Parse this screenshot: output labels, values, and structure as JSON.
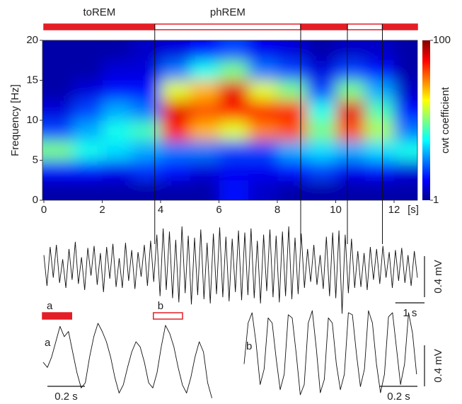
{
  "chart_data": {
    "type": "heatmap",
    "ylabel": "Frequency [Hz]",
    "x_unit_label": "[s]",
    "colorbar_label": "cwt coefficient",
    "colormap": "jet",
    "clim": [
      1,
      100
    ],
    "cticks": [
      1,
      100
    ],
    "xlim": [
      0,
      12.8
    ],
    "xticks": [
      0,
      2,
      4,
      6,
      8,
      10,
      12
    ],
    "ylim": [
      0,
      20
    ],
    "yticks": [
      0,
      5,
      10,
      15,
      20
    ],
    "x": [
      0.5,
      1.5,
      2.5,
      3.5,
      4.5,
      5.5,
      6.5,
      7.5,
      8.5,
      9.5,
      10.5,
      11.5,
      12.5
    ],
    "y": [
      1.25,
      3.75,
      6.25,
      8.75,
      11.25,
      13.75,
      16.25,
      18.75
    ],
    "z": [
      [
        5,
        5,
        5,
        5,
        5,
        5,
        15,
        8,
        5,
        5,
        5,
        5,
        5
      ],
      [
        15,
        15,
        12,
        18,
        15,
        10,
        12,
        12,
        15,
        20,
        12,
        15,
        10
      ],
      [
        50,
        40,
        35,
        30,
        25,
        25,
        20,
        20,
        30,
        35,
        30,
        35,
        40
      ],
      [
        20,
        30,
        40,
        45,
        85,
        70,
        60,
        75,
        80,
        50,
        80,
        55,
        25
      ],
      [
        10,
        20,
        30,
        25,
        90,
        80,
        85,
        85,
        85,
        40,
        90,
        45,
        15
      ],
      [
        5,
        10,
        15,
        15,
        60,
        70,
        90,
        60,
        50,
        20,
        50,
        30,
        8
      ],
      [
        5,
        5,
        10,
        10,
        25,
        40,
        50,
        25,
        20,
        10,
        20,
        15,
        5
      ],
      [
        5,
        5,
        5,
        8,
        10,
        15,
        20,
        12,
        10,
        5,
        8,
        8,
        5
      ]
    ],
    "state_color": "#e41e26",
    "states": [
      {
        "name": "toREM",
        "start": 0,
        "end": 3.8,
        "fill": true
      },
      {
        "name": "phREM",
        "start": 3.8,
        "end": 8.8,
        "fill": false
      },
      {
        "start": 8.8,
        "end": 10.4,
        "fill": true
      },
      {
        "start": 10.4,
        "end": 11.6,
        "fill": false
      },
      {
        "start": 11.6,
        "end": 12.8,
        "fill": true
      }
    ],
    "overview_trace": {
      "t_start": 0,
      "t_end": 12.8,
      "values": [
        0.12,
        -0.18,
        0.2,
        -0.1,
        0.22,
        -0.15,
        0.08,
        -0.2,
        0.18,
        -0.12,
        0.25,
        -0.16,
        0.1,
        -0.22,
        0.19,
        -0.08,
        0.21,
        -0.17,
        0.14,
        -0.24,
        0.2,
        -0.11,
        0.23,
        -0.19,
        0.09,
        -0.2,
        0.24,
        -0.13,
        0.17,
        -0.21,
        0.15,
        -0.09,
        0.22,
        -0.18,
        0.26,
        -0.14,
        0.32,
        -0.28,
        0.38,
        -0.22,
        0.35,
        -0.3,
        0.27,
        -0.34,
        0.4,
        -0.25,
        0.31,
        -0.36,
        0.29,
        -0.27,
        0.37,
        -0.31,
        0.24,
        -0.35,
        0.33,
        -0.26,
        0.39,
        -0.29,
        0.3,
        -0.33,
        0.28,
        -0.24,
        0.36,
        -0.32,
        0.34,
        -0.27,
        0.38,
        -0.3,
        0.26,
        -0.35,
        0.32,
        -0.23,
        0.37,
        -0.29,
        0.31,
        -0.34,
        0.35,
        -0.28,
        0.4,
        -0.31,
        0.29,
        -0.26,
        0.33,
        -0.2,
        0.18,
        -0.14,
        0.22,
        -0.17,
        0.12,
        -0.21,
        0.3,
        -0.28,
        0.34,
        -0.3,
        0.36,
        -0.45,
        0.32,
        -0.25,
        0.28,
        -0.2,
        0.16,
        -0.19,
        0.14,
        -0.22,
        0.2,
        -0.12,
        0.18,
        -0.16,
        0.21,
        -0.1,
        0.15,
        -0.2,
        0.17,
        -0.13,
        0.19,
        -0.15,
        0.12,
        -0.18,
        0.16,
        -0.1
      ],
      "scale_time": {
        "value": 1,
        "label": "1 s"
      },
      "scale_amp": {
        "value": 0.4,
        "label": "0.4 mV"
      }
    },
    "windows": [
      {
        "name": "a",
        "start": 0,
        "end": 1,
        "fill": true
      },
      {
        "name": "b",
        "start": 3.8,
        "end": 4.8,
        "fill": false
      }
    ],
    "detail_traces": [
      {
        "name": "a",
        "duration": 0.9,
        "values": [
          0,
          -0.05,
          0.05,
          0.2,
          0.35,
          0.25,
          0.3,
          0.1,
          -0.1,
          -0.25,
          -0.2,
          0.05,
          0.25,
          0.38,
          0.3,
          0.2,
          0.05,
          -0.15,
          -0.3,
          -0.22,
          -0.05,
          0.1,
          0.2,
          0.15,
          0.0,
          -0.2,
          -0.25,
          -0.1,
          0.15,
          0.36,
          0.28,
          0.15,
          -0.05,
          -0.22,
          -0.3,
          -0.15,
          0.05,
          0.2,
          0.1,
          -0.2,
          -0.35
        ],
        "scale_time": {
          "value": 0.2,
          "label": "0.2 s"
        }
      },
      {
        "name": "b",
        "duration": 0.92,
        "values": [
          -0.1,
          0.3,
          0.4,
          0.1,
          -0.3,
          -0.15,
          0.35,
          0.3,
          -0.05,
          -0.35,
          -0.2,
          0.38,
          0.35,
          0.0,
          -0.4,
          -0.3,
          0.3,
          0.42,
          0.05,
          -0.38,
          -0.25,
          0.35,
          0.3,
          -0.1,
          -0.35,
          -0.2,
          0.4,
          0.38,
          0.0,
          -0.32,
          -0.15,
          0.42,
          0.3,
          -0.1,
          -0.38,
          -0.2,
          0.36,
          0.4,
          0.05,
          -0.3,
          -0.1,
          0.4,
          0.2,
          -0.2
        ],
        "scale_time": {
          "value": 0.2,
          "label": "0.2 s"
        },
        "scale_amp": {
          "value": 0.4,
          "label": "0.4 mV"
        }
      }
    ]
  }
}
